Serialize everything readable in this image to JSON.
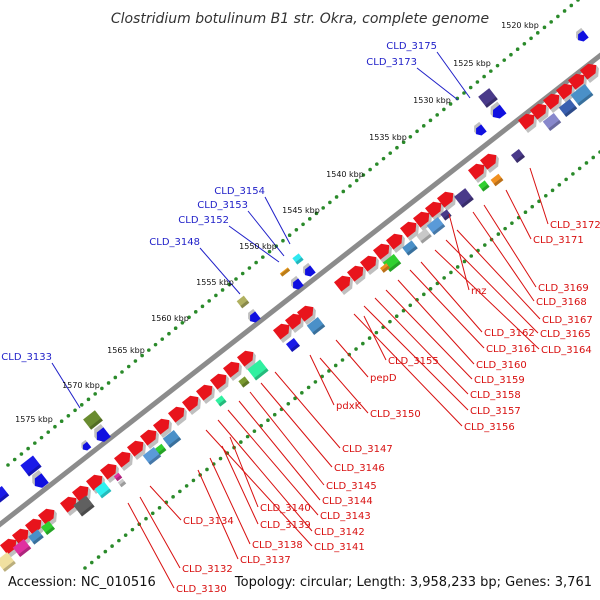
{
  "title": "Clostridium botulinum B1 str. Okra, complete genome",
  "accession": "Accession: NC_010516",
  "topology": "Topology: circular; Length: 3,958,233 bp; Genes: 3,761",
  "colors": {
    "backbone": "#8c8c8c",
    "dots": "#2a8a2a",
    "forward_label": "#1f1fc8",
    "reverse_label": "#d81010",
    "cds_reverse": "#e8141c",
    "cds_forward": "#1010e0"
  },
  "scale_ticks": [
    "1520 kbp",
    "1525 kbp",
    "1530 kbp",
    "1535 kbp",
    "1540 kbp",
    "1545 kbp",
    "1550 kbp",
    "1555 kbp",
    "1560 kbp",
    "1565 kbp",
    "1570 kbp",
    "1575 kbp"
  ],
  "forward_labels": [
    "CLD_3175",
    "CLD_3173",
    "CLD_3154",
    "CLD_3153",
    "CLD_3152",
    "CLD_3148",
    "CLD_3133"
  ],
  "reverse_labels": [
    "CLD_3172",
    "CLD_3171",
    "CLD_3169",
    "CLD_3168",
    "rnz",
    "CLD_3167",
    "CLD_3165",
    "CLD_3164",
    "CLD_3162",
    "CLD_3161",
    "CLD_3160",
    "CLD_3159",
    "CLD_3158",
    "CLD_3157",
    "CLD_3156",
    "CLD_3155",
    "pepD",
    "pdxK",
    "CLD_3150",
    "CLD_3147",
    "CLD_3146",
    "CLD_3145",
    "CLD_3144",
    "CLD_3143",
    "CLD_3142",
    "CLD_3141",
    "CLD_3140",
    "CLD_3139",
    "CLD_3138",
    "CLD_3137",
    "CLD_3134",
    "CLD_3132",
    "CLD_3130"
  ]
}
